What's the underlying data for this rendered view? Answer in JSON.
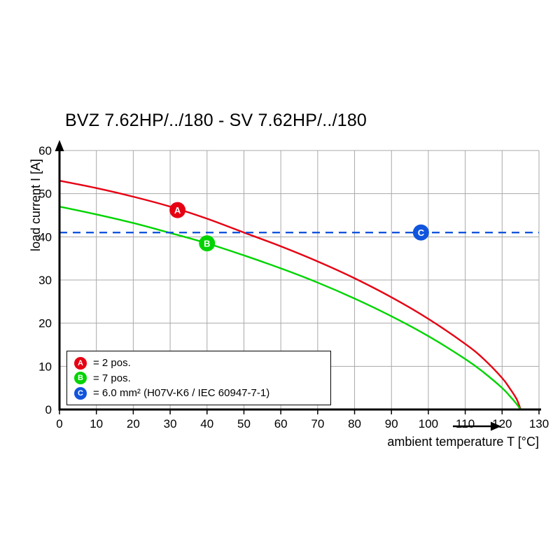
{
  "title": "BVZ 7.62HP/../180 - SV 7.62HP/../180",
  "axes": {
    "x_label": "ambient temperature T [°C]",
    "y_label": "load current I [A]"
  },
  "legend": {
    "items": [
      {
        "id": "A",
        "color": "#e60012",
        "label": "= 2 pos."
      },
      {
        "id": "B",
        "color": "#00d400",
        "label": "= 7 pos."
      },
      {
        "id": "C",
        "color": "#1155dd",
        "label": "= 6.0 mm² (H07V-K6 / IEC 60947-7-1)"
      }
    ]
  },
  "chart_data": {
    "type": "line",
    "title": "BVZ 7.62HP/../180 - SV 7.62HP/../180",
    "xlabel": "ambient temperature T [°C]",
    "ylabel": "load current I [A]",
    "xlim": [
      0,
      130
    ],
    "ylim": [
      0,
      60
    ],
    "x_ticks": [
      0,
      10,
      20,
      30,
      40,
      50,
      60,
      70,
      80,
      90,
      100,
      110,
      120,
      130
    ],
    "y_ticks": [
      0,
      10,
      20,
      30,
      40,
      50,
      60
    ],
    "grid": true,
    "legend_position": "bottom-left",
    "series": [
      {
        "id": "A",
        "label": "2 pos.",
        "color": "#e60012",
        "line_style": "solid",
        "points": [
          [
            0,
            53
          ],
          [
            10,
            51.3
          ],
          [
            20,
            49.3
          ],
          [
            30,
            47
          ],
          [
            40,
            44.2
          ],
          [
            50,
            41
          ],
          [
            60,
            37.8
          ],
          [
            70,
            34.3
          ],
          [
            80,
            30.4
          ],
          [
            90,
            26
          ],
          [
            100,
            21
          ],
          [
            110,
            15.2
          ],
          [
            115,
            11.7
          ],
          [
            120,
            7.3
          ],
          [
            122,
            5
          ],
          [
            124,
            2.3
          ],
          [
            125,
            0
          ]
        ]
      },
      {
        "id": "B",
        "label": "7 pos.",
        "color": "#00d400",
        "line_style": "solid",
        "points": [
          [
            0,
            47
          ],
          [
            10,
            45.2
          ],
          [
            20,
            43.2
          ],
          [
            30,
            40.9
          ],
          [
            40,
            38.5
          ],
          [
            50,
            35.7
          ],
          [
            60,
            32.7
          ],
          [
            70,
            29.4
          ],
          [
            80,
            25.7
          ],
          [
            90,
            21.6
          ],
          [
            100,
            17
          ],
          [
            110,
            11.7
          ],
          [
            115,
            8.6
          ],
          [
            120,
            5
          ],
          [
            122,
            3.2
          ],
          [
            124,
            1.2
          ],
          [
            125,
            0
          ]
        ]
      },
      {
        "id": "C",
        "label": "6.0 mm² (H07V-K6 / IEC 60947-7-1)",
        "color": "#1155dd",
        "line_style": "dashed",
        "points": [
          [
            0,
            41
          ],
          [
            130,
            41
          ]
        ]
      }
    ],
    "markers": [
      {
        "id": "A",
        "x": 32,
        "y": 46.2,
        "color": "#e60012"
      },
      {
        "id": "B",
        "x": 40,
        "y": 38.5,
        "color": "#00d400"
      },
      {
        "id": "C",
        "x": 98,
        "y": 41,
        "color": "#1155dd"
      }
    ]
  }
}
